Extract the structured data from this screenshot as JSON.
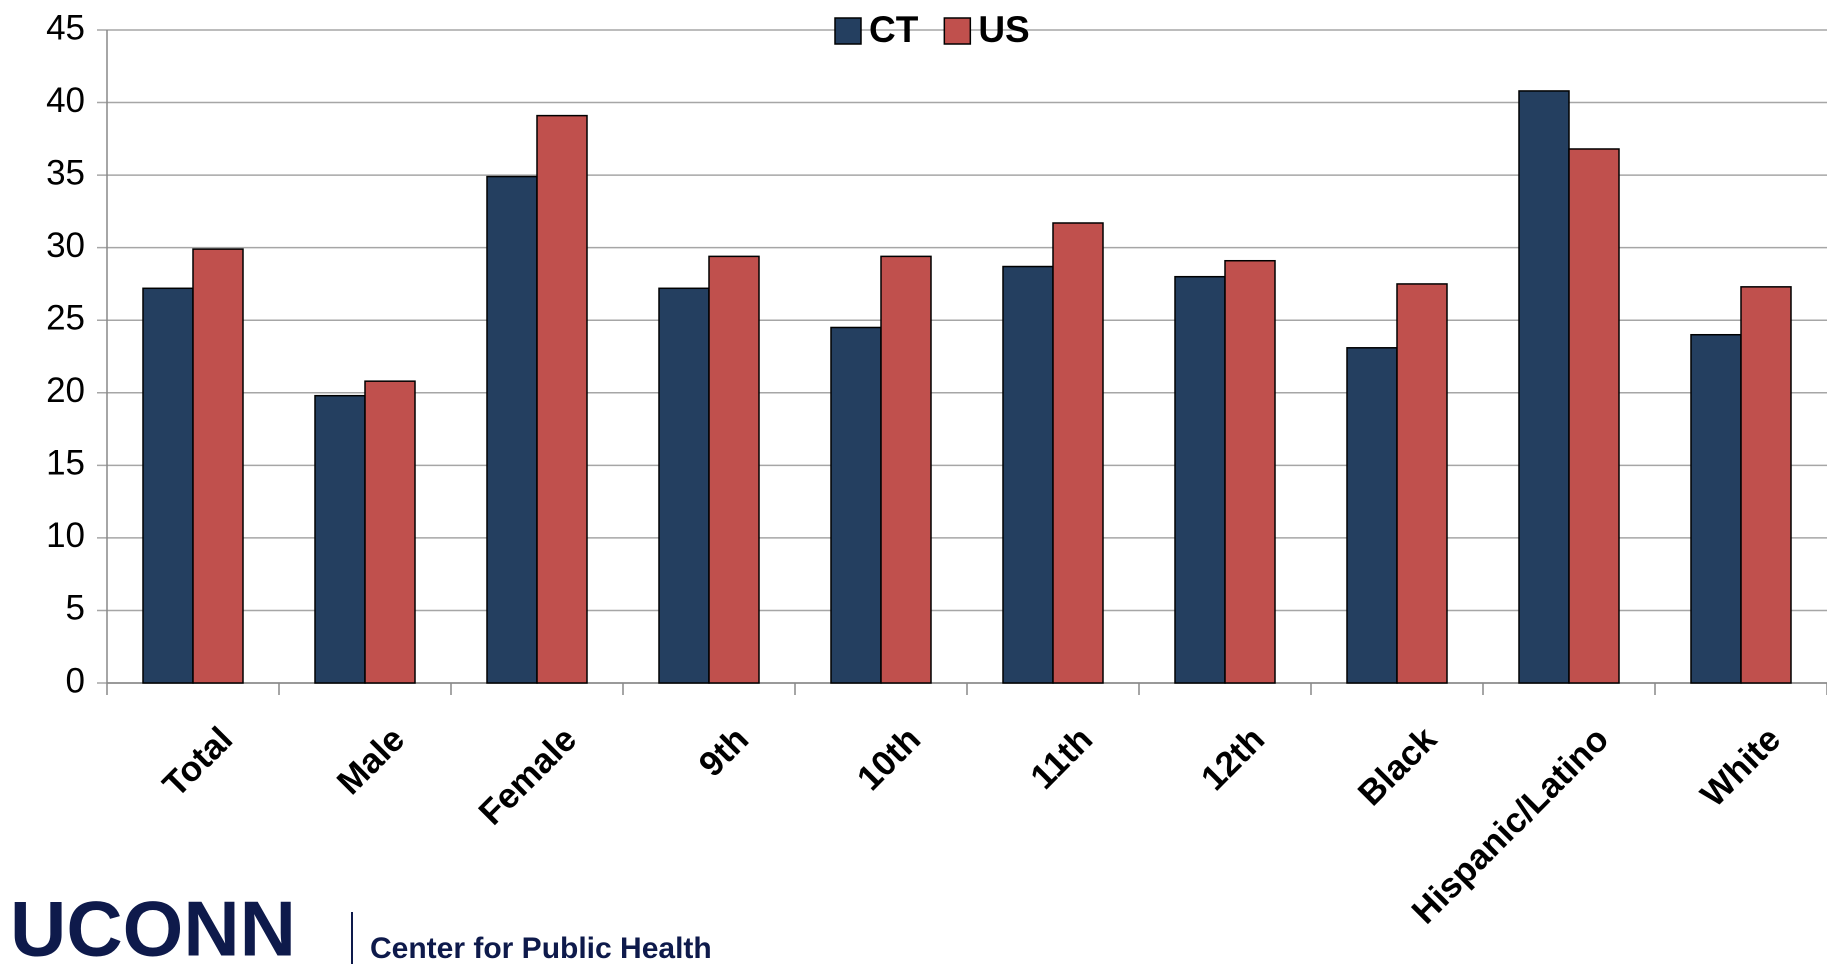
{
  "chart_data": {
    "type": "bar",
    "categories": [
      "Total",
      "Male",
      "Female",
      "9th",
      "10th",
      "11th",
      "12th",
      "Black",
      "Hispanic/Latino",
      "White"
    ],
    "series": [
      {
        "name": "CT",
        "color": "#243f60",
        "values": [
          27.2,
          19.8,
          34.9,
          27.2,
          24.5,
          28.7,
          28.0,
          23.1,
          40.8,
          24.0
        ]
      },
      {
        "name": "US",
        "color": "#c0504d",
        "values": [
          29.9,
          20.8,
          39.1,
          29.4,
          29.4,
          31.7,
          29.1,
          27.5,
          36.8,
          27.3
        ]
      }
    ],
    "ylim": [
      0,
      45
    ],
    "yticks": [
      0,
      5,
      10,
      15,
      20,
      25,
      30,
      35,
      40,
      45
    ],
    "grid": true,
    "legend": "top"
  },
  "footer": {
    "logo": "UCONN",
    "text": "Center for Public Health"
  }
}
